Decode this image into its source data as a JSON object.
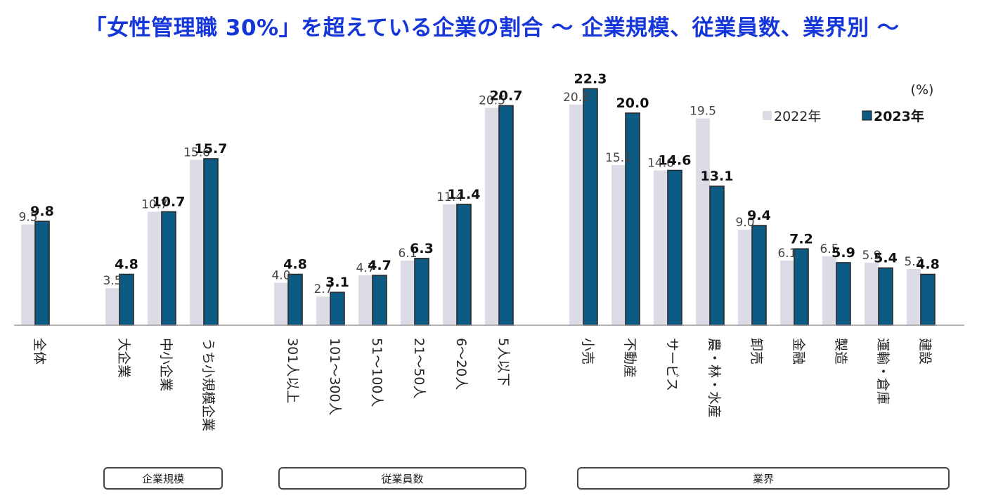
{
  "title": "「女性管理職 30%」を超えている企業の割合 ～ 企業規模、従業員数、業界別 ～",
  "unit_label": "(%)",
  "colors": {
    "title": "#1536d8",
    "series_2022": "#dcdce6",
    "series_2023": "#0d5a85",
    "series_2023_border": "#2b2b2b",
    "axis": "#9a9a9a"
  },
  "chart_data": {
    "type": "bar",
    "title": "「女性管理職 30%」を超えている企業の割合 ～ 企業規模、従業員数、業界別 ～",
    "ylabel": "(%)",
    "ylim": [
      0,
      24
    ],
    "grid": false,
    "legend_position": "top-right",
    "categories": [
      "全体",
      "大企業",
      "中小企業",
      "うち小規模企業",
      "301人以上",
      "101～300人",
      "51～100人",
      "21～50人",
      "6～20人",
      "5人以下",
      "小売",
      "不動産",
      "サービス",
      "農・林・水産",
      "卸売",
      "金融",
      "製造",
      "運輸・倉庫",
      "建設"
    ],
    "series": [
      {
        "name": "2022年",
        "values": [
          9.5,
          3.5,
          10.7,
          15.6,
          4.0,
          2.7,
          4.7,
          6.1,
          11.4,
          20.5,
          20.8,
          15.1,
          14.6,
          19.5,
          9.0,
          6.1,
          6.5,
          5.9,
          5.3
        ]
      },
      {
        "name": "2023年",
        "values": [
          9.8,
          4.8,
          10.7,
          15.7,
          4.8,
          3.1,
          4.7,
          6.3,
          11.4,
          20.7,
          22.3,
          20.0,
          14.6,
          13.1,
          9.4,
          7.2,
          5.9,
          5.4,
          4.8
        ]
      }
    ],
    "groups": [
      {
        "label": "企業規模"
      },
      {
        "label": "従業員数"
      },
      {
        "label": "業界"
      }
    ]
  }
}
